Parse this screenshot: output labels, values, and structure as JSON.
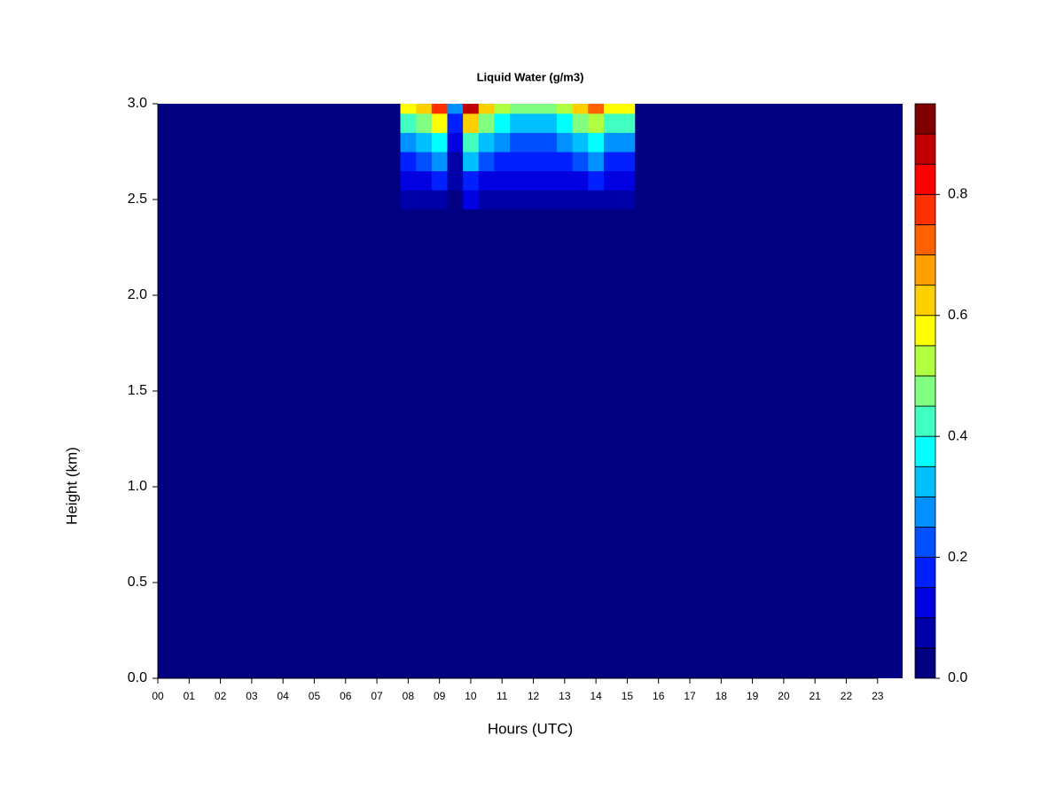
{
  "chart_data": {
    "type": "heatmap",
    "title": "Liquid Water (g/m3)",
    "x_label": "Hours (UTC)",
    "y_label": "Height (km)",
    "x": [
      7.5,
      8,
      8.5,
      9,
      9.5,
      10,
      10.5,
      11,
      11.5,
      12,
      12.5,
      13,
      13.5,
      14,
      14.5,
      15,
      15.5
    ],
    "y": [
      2.2,
      2.3,
      2.4,
      2.5,
      2.6,
      2.7,
      2.8,
      2.9,
      3.0
    ],
    "z": [
      [
        0,
        0,
        0,
        0,
        0,
        0,
        0,
        0,
        0,
        0,
        0,
        0,
        0,
        0,
        0,
        0,
        0
      ],
      [
        0,
        0.01,
        0.01,
        0.02,
        0,
        0.02,
        0.01,
        0.01,
        0.01,
        0.01,
        0.01,
        0.01,
        0.01,
        0.02,
        0.01,
        0.01,
        0
      ],
      [
        0,
        0.03,
        0.03,
        0.04,
        0.01,
        0.04,
        0.03,
        0.03,
        0.02,
        0.02,
        0.02,
        0.03,
        0.03,
        0.04,
        0.03,
        0.03,
        0
      ],
      [
        0,
        0.07,
        0.07,
        0.09,
        0.03,
        0.1,
        0.07,
        0.06,
        0.05,
        0.05,
        0.05,
        0.06,
        0.07,
        0.08,
        0.07,
        0.07,
        0
      ],
      [
        0,
        0.12,
        0.13,
        0.17,
        0.06,
        0.19,
        0.13,
        0.11,
        0.1,
        0.1,
        0.1,
        0.11,
        0.13,
        0.15,
        0.12,
        0.12,
        0
      ],
      [
        0,
        0.19,
        0.21,
        0.26,
        0.09,
        0.3,
        0.21,
        0.18,
        0.16,
        0.16,
        0.16,
        0.18,
        0.21,
        0.25,
        0.19,
        0.19,
        0
      ],
      [
        0,
        0.28,
        0.3,
        0.38,
        0.13,
        0.43,
        0.3,
        0.25,
        0.23,
        0.23,
        0.23,
        0.25,
        0.3,
        0.35,
        0.28,
        0.28,
        0
      ],
      [
        0,
        0.41,
        0.45,
        0.56,
        0.19,
        0.64,
        0.45,
        0.38,
        0.34,
        0.34,
        0.34,
        0.38,
        0.45,
        0.53,
        0.41,
        0.41,
        0
      ],
      [
        0,
        0.55,
        0.6,
        0.75,
        0.25,
        0.85,
        0.6,
        0.5,
        0.45,
        0.45,
        0.45,
        0.5,
        0.6,
        0.7,
        0.55,
        0.55,
        0
      ]
    ],
    "levels": [
      0,
      0.05,
      0.1,
      0.15,
      0.2,
      0.25,
      0.3,
      0.35,
      0.4,
      0.45,
      0.5,
      0.55,
      0.6,
      0.65,
      0.7,
      0.75,
      0.8,
      0.85,
      0.9,
      0.95
    ],
    "colors": [
      "#000080",
      "#0000a8",
      "#0000e0",
      "#0020ff",
      "#0050ff",
      "#0090ff",
      "#00c0ff",
      "#00ffff",
      "#40ffc0",
      "#80ff80",
      "#b0ff40",
      "#ffff00",
      "#ffd000",
      "#ffa000",
      "#ff6000",
      "#ff3000",
      "#ff0000",
      "#c00000",
      "#800000"
    ],
    "colorbar_ticks": [
      {
        "value": 0,
        "label": "0.0"
      },
      {
        "value": 0.2,
        "label": "0.2"
      },
      {
        "value": 0.4,
        "label": "0.4"
      },
      {
        "value": 0.6,
        "label": "0.6"
      },
      {
        "value": 0.8,
        "label": "0.8"
      }
    ],
    "xlim": [
      0,
      23.8
    ],
    "ylim": [
      0,
      3
    ],
    "xticks": [
      {
        "value": 0,
        "label": "00"
      },
      {
        "value": 1,
        "label": "01"
      },
      {
        "value": 2,
        "label": "02"
      },
      {
        "value": 3,
        "label": "03"
      },
      {
        "value": 4,
        "label": "04"
      },
      {
        "value": 5,
        "label": "05"
      },
      {
        "value": 6,
        "label": "06"
      },
      {
        "value": 7,
        "label": "07"
      },
      {
        "value": 8,
        "label": "08"
      },
      {
        "value": 9,
        "label": "09"
      },
      {
        "value": 10,
        "label": "10"
      },
      {
        "value": 11,
        "label": "11"
      },
      {
        "value": 12,
        "label": "12"
      },
      {
        "value": 13,
        "label": "13"
      },
      {
        "value": 14,
        "label": "14"
      },
      {
        "value": 15,
        "label": "15"
      },
      {
        "value": 16,
        "label": "16"
      },
      {
        "value": 17,
        "label": "17"
      },
      {
        "value": 18,
        "label": "18"
      },
      {
        "value": 19,
        "label": "19"
      },
      {
        "value": 20,
        "label": "20"
      },
      {
        "value": 21,
        "label": "21"
      },
      {
        "value": 22,
        "label": "22"
      },
      {
        "value": 23,
        "label": "23"
      }
    ],
    "yticks": [
      {
        "value": 0,
        "label": "0.0"
      },
      {
        "value": 0.5,
        "label": "0.5"
      },
      {
        "value": 1,
        "label": "1.0"
      },
      {
        "value": 1.5,
        "label": "1.5"
      },
      {
        "value": 2,
        "label": "2.0"
      },
      {
        "value": 2.5,
        "label": "2.5"
      },
      {
        "value": 3,
        "label": "3.0"
      }
    ]
  }
}
